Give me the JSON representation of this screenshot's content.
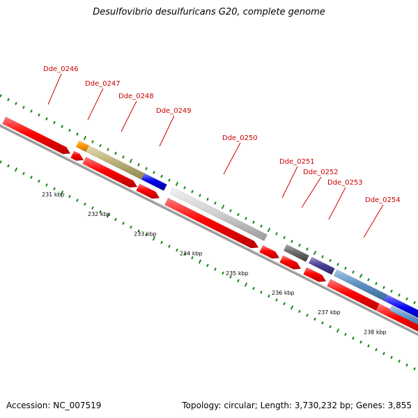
{
  "title": "Desulfovibrio desulfuricans G20, complete genome",
  "footer": {
    "accession": "Accession: NC_007519",
    "summary": "Topology: circular; Length: 3,730,232 bp; Genes: 3,855"
  },
  "colors": {
    "label_red": "#cc0000",
    "cds_red": "#ff0000",
    "tick_green": "#1a8a1a",
    "backbone_gray": "#888888"
  },
  "gene_labels": [
    "Dde_0246",
    "Dde_0247",
    "Dde_0248",
    "Dde_0249",
    "Dde_0250",
    "Dde_0251",
    "Dde_0252",
    "Dde_0253",
    "Dde_0254"
  ],
  "kbp_labels": [
    "231 kbp",
    "232 kbp",
    "233 kbp",
    "234 kbp",
    "235 kbp",
    "236 kbp",
    "237 kbp",
    "238 kbp"
  ]
}
